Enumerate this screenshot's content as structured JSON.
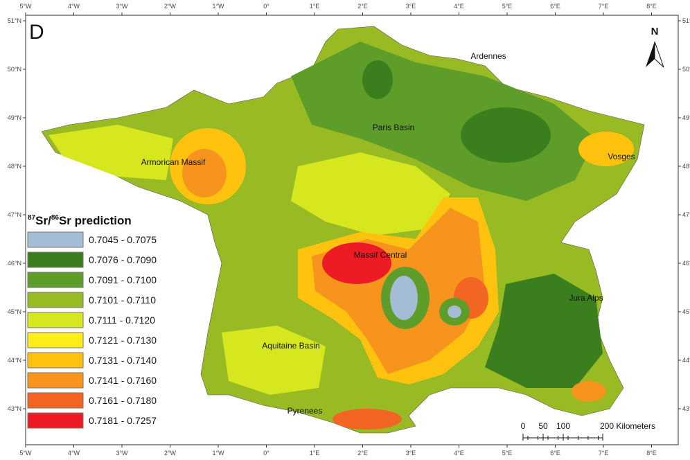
{
  "panel_label": "D",
  "north_arrow": "N",
  "longitude_labels": [
    "5°W",
    "4°W",
    "3°W",
    "2°W",
    "1°W",
    "0°",
    "1°E",
    "2°E",
    "3°E",
    "4°E",
    "5°E",
    "6°E",
    "7°E",
    "8°E"
  ],
  "latitude_labels": [
    "51°N",
    "50°N",
    "49°N",
    "48°N",
    "47°N",
    "46°N",
    "45°N",
    "44°N",
    "43°N"
  ],
  "region_labels": [
    "Ardennes",
    "Paris Basin",
    "Armorican Massif",
    "Vosges",
    "Massif Central",
    "Jura Alps",
    "Aquitaine Basin",
    "Pyrenees"
  ],
  "legend": {
    "title_parts": [
      "87",
      "Sr/",
      "86",
      "Sr prediction"
    ],
    "items": [
      {
        "label": "0.7045 - 0.7075",
        "color": "#a5bcd6"
      },
      {
        "label": "0.7076 - 0.7090",
        "color": "#3b7e1e"
      },
      {
        "label": "0.7091 - 0.7100",
        "color": "#5f9d2b"
      },
      {
        "label": "0.7101 - 0.7110",
        "color": "#98ba22"
      },
      {
        "label": "0.7111 - 0.7120",
        "color": "#d6e61f"
      },
      {
        "label": "0.7121 - 0.7130",
        "color": "#ffec1a"
      },
      {
        "label": "0.7131 - 0.7140",
        "color": "#ffc20f"
      },
      {
        "label": "0.7141 - 0.7160",
        "color": "#f7941d"
      },
      {
        "label": "0.7161 - 0.7180",
        "color": "#f26522"
      },
      {
        "label": "0.7181 - 0.7257",
        "color": "#ed1c24"
      }
    ]
  },
  "scale_bar": {
    "labels": [
      "0",
      "50",
      "100",
      "200 Kilometers"
    ]
  }
}
